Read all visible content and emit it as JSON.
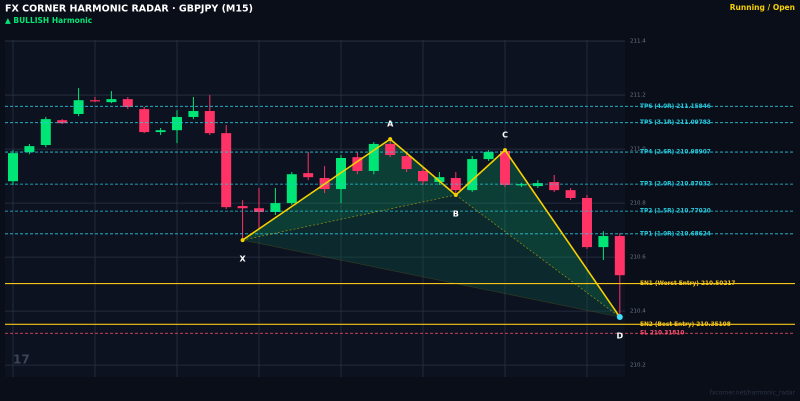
{
  "chart_data": {
    "type": "candlestick",
    "title": "FX CORNER HARMONIC RADAR  ·  GBPJPY (M15)",
    "subtitle": "▲ BULLISH  Harmonic",
    "status": "Running / Open",
    "watermark": "17",
    "footer": "fxcorner.net/harmonic_radar",
    "up_color": "#00e676",
    "down_color": "#ff3366",
    "grid": true,
    "ylim": [
      210.156,
      211.404
    ],
    "yticks": [
      211.4,
      211.2,
      {
        "value": 211.0,
        "label": "211.0"
      },
      210.8,
      210.6,
      210.4,
      210.2
    ],
    "categories": [
      null,
      null,
      null,
      null,
      null,
      null,
      null,
      null,
      null,
      null,
      null,
      null,
      null,
      null,
      null,
      null,
      null,
      null,
      null,
      null,
      null,
      null,
      null,
      null,
      null,
      null,
      null,
      null,
      null,
      null,
      null,
      null,
      null,
      null,
      null,
      null,
      null,
      null
    ],
    "open": [
      210.881,
      210.989,
      211.015,
      211.107,
      211.13,
      211.181,
      211.174,
      211.185,
      211.148,
      211.063,
      211.07,
      211.119,
      211.141,
      211.059,
      210.789,
      210.781,
      210.767,
      210.8,
      210.911,
      210.893,
      210.852,
      210.97,
      210.919,
      211.019,
      210.974,
      210.919,
      210.878,
      210.893,
      210.848,
      210.963,
      210.993,
      210.867,
      210.863,
      210.878,
      210.848,
      210.819,
      210.637,
      210.678
    ],
    "high": [
      210.996,
      211.019,
      211.119,
      211.111,
      211.226,
      211.193,
      211.215,
      211.193,
      211.156,
      211.078,
      211.144,
      211.193,
      211.2,
      211.089,
      210.811,
      210.856,
      210.856,
      210.915,
      210.989,
      210.937,
      210.978,
      210.989,
      211.026,
      211.037,
      210.981,
      210.933,
      210.915,
      210.915,
      210.974,
      210.996,
      210.996,
      210.875,
      210.885,
      210.904,
      210.856,
      210.83,
      210.696,
      210.689
    ],
    "low": [
      210.867,
      210.981,
      211.007,
      211.093,
      211.122,
      211.174,
      211.17,
      211.148,
      211.059,
      211.052,
      211.022,
      211.111,
      211.052,
      210.778,
      210.66,
      210.707,
      210.756,
      210.793,
      210.885,
      210.837,
      210.8,
      210.907,
      210.907,
      210.97,
      210.915,
      210.867,
      210.867,
      210.83,
      210.841,
      210.956,
      210.859,
      210.86,
      210.856,
      210.841,
      210.811,
      210.63,
      210.589,
      210.378
    ],
    "close": [
      210.985,
      211.011,
      211.111,
      211.096,
      211.181,
      211.178,
      211.185,
      211.156,
      211.063,
      211.07,
      211.119,
      211.141,
      211.059,
      210.785,
      210.781,
      210.767,
      210.8,
      210.907,
      210.896,
      210.852,
      210.967,
      210.919,
      211.019,
      210.978,
      210.926,
      210.881,
      210.896,
      210.848,
      210.963,
      210.989,
      210.867,
      210.87,
      210.874,
      210.848,
      210.819,
      210.637,
      210.678,
      210.533
    ],
    "pattern": {
      "color": "#f5d000",
      "points": [
        {
          "label": "X",
          "x": 14,
          "value": 210.663
        },
        {
          "label": "A",
          "x": 23,
          "value": 211.037
        },
        {
          "label": "B",
          "x": 27,
          "value": 210.83
        },
        {
          "label": "C",
          "x": 30,
          "value": 210.996
        },
        {
          "label": "D",
          "x": 37,
          "value": 210.378
        }
      ]
    },
    "levels": [
      {
        "label": "TP6 (4.0R)  211.15846",
        "value": 211.15846,
        "color": "#26c6da",
        "dashed": true
      },
      {
        "label": "TP5 (3.1R)  211.09783",
        "value": 211.09783,
        "color": "#26c6da",
        "dashed": true
      },
      {
        "label": "TP4 (2.6R)  210.98907",
        "value": 210.98907,
        "color": "#26c6da",
        "dashed": true
      },
      {
        "label": "TP3 (2.0R)  210.87032",
        "value": 210.87032,
        "color": "#26c6da",
        "dashed": true
      },
      {
        "label": "TP2 (1.5R)  210.77020",
        "value": 210.7702,
        "color": "#26c6da",
        "dashed": true
      },
      {
        "label": "TP1 (1.0R)  210.68624",
        "value": 210.68624,
        "color": "#26c6da",
        "dashed": true
      },
      {
        "label": "EN1 (Worst Entry)  210.50217",
        "value": 210.50217,
        "color": "#f5c518",
        "dashed": false
      },
      {
        "label": "EN2 (Best Entry)  210.35108",
        "value": 210.35108,
        "color": "#f5c518",
        "dashed": false
      },
      {
        "label": "SL  210.31810",
        "value": 210.3181,
        "color": "#ff4d6d",
        "dashed": true
      }
    ]
  }
}
